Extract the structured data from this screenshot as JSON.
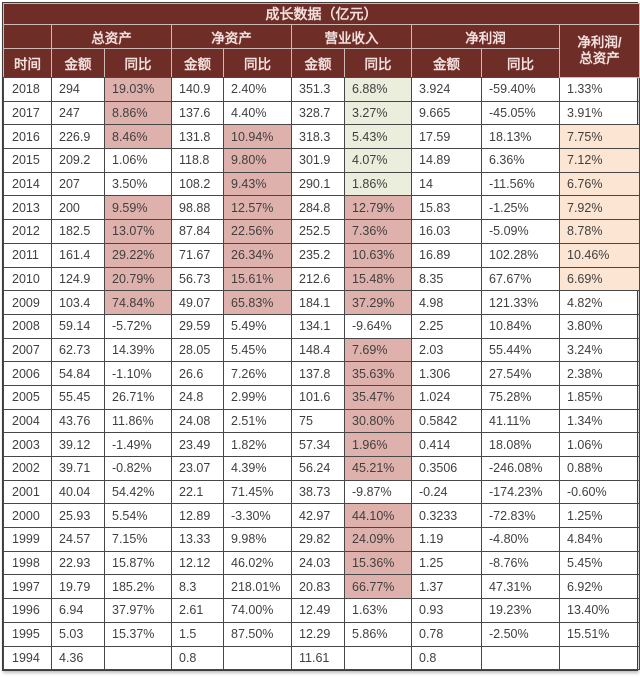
{
  "colors": {
    "header_bg": "#6e2d26",
    "header_text": "#f3dfdd",
    "highlight_pink": "#dfb1ac",
    "highlight_green": "#ebeedd",
    "highlight_orange": "#fce5d2",
    "body_text": "#3f3f3f",
    "grid_line": "#474747",
    "header_grid_line": "#cdb9b6"
  },
  "chart_data": {
    "type": "table",
    "title": "成长数据（亿元）",
    "time_column": "时间",
    "column_groups": [
      {
        "label": "总资产",
        "children": [
          "金额",
          "同比"
        ]
      },
      {
        "label": "净资产",
        "children": [
          "金额",
          "同比"
        ]
      },
      {
        "label": "营业收入",
        "children": [
          "金额",
          "同比"
        ]
      },
      {
        "label": "净利润",
        "children": [
          "金额",
          "同比"
        ]
      }
    ],
    "ratio_column": [
      "净利润/",
      "总资产"
    ],
    "highlight_legend": {
      "p": "pink",
      "g": "green",
      "o": "orange"
    },
    "rows": [
      {
        "year": "2018",
        "values": [
          "294",
          "19.03%",
          "140.9",
          "2.40%",
          "351.3",
          "6.88%",
          "3.924",
          "-59.40%",
          "1.33%"
        ],
        "highlights": [
          "",
          "p",
          "",
          "",
          "",
          "g",
          "",
          "",
          ""
        ]
      },
      {
        "year": "2017",
        "values": [
          "247",
          "8.86%",
          "137.6",
          "4.40%",
          "328.7",
          "3.27%",
          "9.665",
          "-45.05%",
          "3.91%"
        ],
        "highlights": [
          "",
          "p",
          "",
          "",
          "",
          "g",
          "",
          "",
          ""
        ]
      },
      {
        "year": "2016",
        "values": [
          "226.9",
          "8.46%",
          "131.8",
          "10.94%",
          "318.3",
          "5.43%",
          "17.59",
          "18.13%",
          "7.75%"
        ],
        "highlights": [
          "",
          "p",
          "",
          "p",
          "",
          "g",
          "",
          "",
          "o"
        ]
      },
      {
        "year": "2015",
        "values": [
          "209.2",
          "1.06%",
          "118.8",
          "9.80%",
          "301.9",
          "4.07%",
          "14.89",
          "6.36%",
          "7.12%"
        ],
        "highlights": [
          "",
          "",
          "",
          "p",
          "",
          "g",
          "",
          "",
          "o"
        ]
      },
      {
        "year": "2014",
        "values": [
          "207",
          "3.50%",
          "108.2",
          "9.43%",
          "290.1",
          "1.86%",
          "14",
          "-11.56%",
          "6.76%"
        ],
        "highlights": [
          "",
          "",
          "",
          "p",
          "",
          "g",
          "",
          "",
          "o"
        ]
      },
      {
        "year": "2013",
        "values": [
          "200",
          "9.59%",
          "98.88",
          "12.57%",
          "284.8",
          "12.79%",
          "15.83",
          "-1.25%",
          "7.92%"
        ],
        "highlights": [
          "",
          "p",
          "",
          "p",
          "",
          "p",
          "",
          "",
          "o"
        ]
      },
      {
        "year": "2012",
        "values": [
          "182.5",
          "13.07%",
          "87.84",
          "22.56%",
          "252.5",
          "7.36%",
          "16.03",
          "-5.09%",
          "8.78%"
        ],
        "highlights": [
          "",
          "p",
          "",
          "p",
          "",
          "p",
          "",
          "",
          "o"
        ]
      },
      {
        "year": "2011",
        "values": [
          "161.4",
          "29.22%",
          "71.67",
          "26.34%",
          "235.2",
          "10.63%",
          "16.89",
          "102.28%",
          "10.46%"
        ],
        "highlights": [
          "",
          "p",
          "",
          "p",
          "",
          "p",
          "",
          "",
          "o"
        ]
      },
      {
        "year": "2010",
        "values": [
          "124.9",
          "20.79%",
          "56.73",
          "15.61%",
          "212.6",
          "15.48%",
          "8.35",
          "67.67%",
          "6.69%"
        ],
        "highlights": [
          "",
          "p",
          "",
          "p",
          "",
          "p",
          "",
          "",
          "o"
        ]
      },
      {
        "year": "2009",
        "values": [
          "103.4",
          "74.84%",
          "49.07",
          "65.83%",
          "184.1",
          "37.29%",
          "4.98",
          "121.33%",
          "4.82%"
        ],
        "highlights": [
          "",
          "p",
          "",
          "p",
          "",
          "p",
          "",
          "",
          ""
        ]
      },
      {
        "year": "2008",
        "values": [
          "59.14",
          "-5.72%",
          "29.59",
          "5.49%",
          "134.1",
          "-9.64%",
          "2.25",
          "10.84%",
          "3.80%"
        ],
        "highlights": [
          "",
          "",
          "",
          "",
          "",
          "",
          "",
          "",
          ""
        ]
      },
      {
        "year": "2007",
        "values": [
          "62.73",
          "14.39%",
          "28.05",
          "5.45%",
          "148.4",
          "7.69%",
          "2.03",
          "55.44%",
          "3.24%"
        ],
        "highlights": [
          "",
          "",
          "",
          "",
          "",
          "p",
          "",
          "",
          ""
        ]
      },
      {
        "year": "2006",
        "values": [
          "54.84",
          "-1.10%",
          "26.6",
          "7.26%",
          "137.8",
          "35.63%",
          "1.306",
          "27.54%",
          "2.38%"
        ],
        "highlights": [
          "",
          "",
          "",
          "",
          "",
          "p",
          "",
          "",
          ""
        ]
      },
      {
        "year": "2005",
        "values": [
          "55.45",
          "26.71%",
          "24.8",
          "2.99%",
          "101.6",
          "35.47%",
          "1.024",
          "75.28%",
          "1.85%"
        ],
        "highlights": [
          "",
          "",
          "",
          "",
          "",
          "p",
          "",
          "",
          ""
        ]
      },
      {
        "year": "2004",
        "values": [
          "43.76",
          "11.86%",
          "24.08",
          "2.51%",
          "75",
          "30.80%",
          "0.5842",
          "41.11%",
          "1.34%"
        ],
        "highlights": [
          "",
          "",
          "",
          "",
          "",
          "p",
          "",
          "",
          ""
        ]
      },
      {
        "year": "2003",
        "values": [
          "39.12",
          "-1.49%",
          "23.49",
          "1.82%",
          "57.34",
          "1.96%",
          "0.414",
          "18.08%",
          "1.06%"
        ],
        "highlights": [
          "",
          "",
          "",
          "",
          "",
          "p",
          "",
          "",
          ""
        ]
      },
      {
        "year": "2002",
        "values": [
          "39.71",
          "-0.82%",
          "23.07",
          "4.39%",
          "56.24",
          "45.21%",
          "0.3506",
          "-246.08%",
          "0.88%"
        ],
        "highlights": [
          "",
          "",
          "",
          "",
          "",
          "p",
          "",
          "",
          ""
        ]
      },
      {
        "year": "2001",
        "values": [
          "40.04",
          "54.42%",
          "22.1",
          "71.45%",
          "38.73",
          "-9.87%",
          "-0.24",
          "-174.23%",
          "-0.60%"
        ],
        "highlights": [
          "",
          "",
          "",
          "",
          "",
          "",
          "",
          "",
          ""
        ]
      },
      {
        "year": "2000",
        "values": [
          "25.93",
          "5.54%",
          "12.89",
          "-3.30%",
          "42.97",
          "44.10%",
          "0.3233",
          "-72.83%",
          "1.25%"
        ],
        "highlights": [
          "",
          "",
          "",
          "",
          "",
          "p",
          "",
          "",
          ""
        ]
      },
      {
        "year": "1999",
        "values": [
          "24.57",
          "7.15%",
          "13.33",
          "9.98%",
          "29.82",
          "24.09%",
          "1.19",
          "-4.80%",
          "4.84%"
        ],
        "highlights": [
          "",
          "",
          "",
          "",
          "",
          "p",
          "",
          "",
          ""
        ]
      },
      {
        "year": "1998",
        "values": [
          "22.93",
          "15.87%",
          "12.12",
          "46.02%",
          "24.03",
          "15.36%",
          "1.25",
          "-8.76%",
          "5.45%"
        ],
        "highlights": [
          "",
          "",
          "",
          "",
          "",
          "p",
          "",
          "",
          ""
        ]
      },
      {
        "year": "1997",
        "values": [
          "19.79",
          "185.2%",
          "8.3",
          "218.01%",
          "20.83",
          "66.77%",
          "1.37",
          "47.31%",
          "6.92%"
        ],
        "highlights": [
          "",
          "",
          "",
          "",
          "",
          "p",
          "",
          "",
          ""
        ]
      },
      {
        "year": "1996",
        "values": [
          "6.94",
          "37.97%",
          "2.61",
          "74.00%",
          "12.49",
          "1.63%",
          "0.93",
          "19.23%",
          "13.40%"
        ],
        "highlights": [
          "",
          "",
          "",
          "",
          "",
          "",
          "",
          "",
          ""
        ]
      },
      {
        "year": "1995",
        "values": [
          "5.03",
          "15.37%",
          "1.5",
          "87.50%",
          "12.29",
          "5.86%",
          "0.78",
          "-2.50%",
          "15.51%"
        ],
        "highlights": [
          "",
          "",
          "",
          "",
          "",
          "",
          "",
          "",
          ""
        ]
      },
      {
        "year": "1994",
        "values": [
          "4.36",
          "",
          "0.8",
          "",
          "11.61",
          "",
          "0.8",
          "",
          ""
        ],
        "highlights": [
          "",
          "",
          "",
          "",
          "",
          "",
          "",
          "",
          ""
        ]
      }
    ]
  }
}
